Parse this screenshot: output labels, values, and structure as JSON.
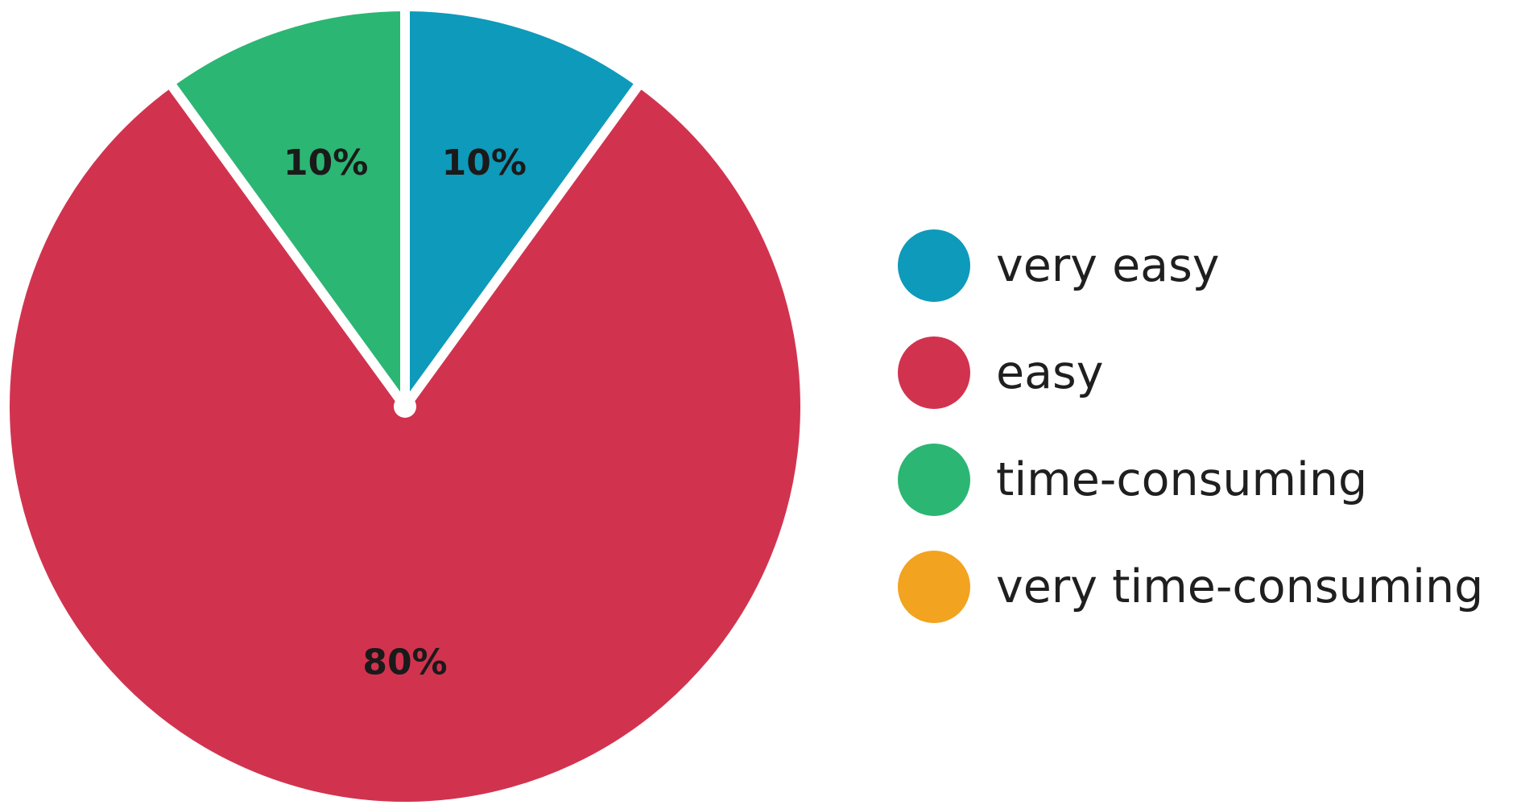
{
  "chart_data": {
    "type": "pie",
    "title": "",
    "start_angle_deg": 0,
    "direction": "clockwise",
    "slices": [
      {
        "label": "very easy",
        "value": 10,
        "display": "10%",
        "color": "#0e9aba"
      },
      {
        "label": "easy",
        "value": 80,
        "display": "80%",
        "color": "#d1334f"
      },
      {
        "label": "time-consuming",
        "value": 10,
        "display": "10%",
        "color": "#2bb673"
      },
      {
        "label": "very time-consuming",
        "value": 0,
        "display": "",
        "color": "#f2a31f"
      }
    ],
    "legend": {
      "placement": "right",
      "items": [
        "very easy",
        "easy",
        "time-consuming",
        "very time-consuming"
      ]
    }
  }
}
